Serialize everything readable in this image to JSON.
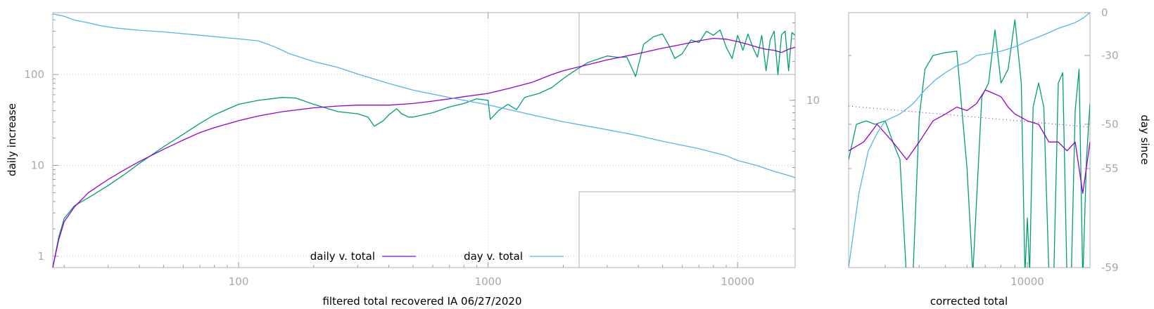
{
  "colors": {
    "daily": "#9400d3",
    "day": "#56b4e9",
    "raw": "#009e73",
    "frame": "#b0b0b0",
    "tick_text": "#a8a8a8"
  },
  "chart_data": [
    {
      "type": "line",
      "xscale": "log",
      "yscale": "log",
      "xlim": [
        18,
        17000
      ],
      "ylim": [
        0.75,
        480
      ],
      "y2lim": [
        0.5,
        48
      ],
      "grid": true,
      "legend_position": "bottom-center",
      "xlabel": "filtered total recovered IA 06/27/2020",
      "ylabel": "daily increase",
      "y2label": "",
      "x_ticks": [
        {
          "value": 100,
          "label": "100"
        },
        {
          "value": 1000,
          "label": "1000"
        },
        {
          "value": 10000,
          "label": "10000"
        }
      ],
      "y_ticks": [
        {
          "value": 1,
          "label": "1"
        },
        {
          "value": 10,
          "label": "10"
        },
        {
          "value": 100,
          "label": "100"
        }
      ],
      "y2_ticks": [
        {
          "value": 10,
          "label": "10"
        }
      ],
      "series": [
        {
          "name": "daily v. total",
          "color": "#9400d3",
          "axis": "y",
          "points": [
            [
              18,
              0.75
            ],
            [
              19,
              1.5
            ],
            [
              20,
              2.4
            ],
            [
              22,
              3.5
            ],
            [
              25,
              5.0
            ],
            [
              30,
              7.0
            ],
            [
              35,
              9.0
            ],
            [
              40,
              11
            ],
            [
              50,
              15
            ],
            [
              60,
              19
            ],
            [
              70,
              23
            ],
            [
              80,
              26
            ],
            [
              100,
              31
            ],
            [
              120,
              35
            ],
            [
              150,
              39
            ],
            [
              200,
              43
            ],
            [
              250,
              45
            ],
            [
              300,
              46
            ],
            [
              350,
              46
            ],
            [
              400,
              46
            ],
            [
              500,
              48
            ],
            [
              600,
              51
            ],
            [
              700,
              54
            ],
            [
              800,
              57
            ],
            [
              1000,
              62
            ],
            [
              1200,
              70
            ],
            [
              1500,
              82
            ],
            [
              1800,
              100
            ],
            [
              2000,
              110
            ],
            [
              2500,
              128
            ],
            [
              3000,
              145
            ],
            [
              4000,
              170
            ],
            [
              5000,
              195
            ],
            [
              6000,
              215
            ],
            [
              7000,
              235
            ],
            [
              8000,
              250
            ],
            [
              9000,
              245
            ],
            [
              10000,
              230
            ],
            [
              11000,
              215
            ],
            [
              12000,
              200
            ],
            [
              13000,
              190
            ],
            [
              14000,
              185
            ],
            [
              15000,
              175
            ],
            [
              16000,
              190
            ],
            [
              17000,
              200
            ]
          ]
        },
        {
          "name": "day v. total",
          "color": "#56b4e9",
          "axis": "y2",
          "points": [
            [
              18,
              47
            ],
            [
              20,
              45
            ],
            [
              22,
              42
            ],
            [
              25,
              40
            ],
            [
              28,
              38
            ],
            [
              32,
              36.5
            ],
            [
              40,
              35
            ],
            [
              50,
              34
            ],
            [
              70,
              32
            ],
            [
              100,
              30
            ],
            [
              120,
              29
            ],
            [
              140,
              26
            ],
            [
              160,
              23
            ],
            [
              200,
              20
            ],
            [
              250,
              18
            ],
            [
              300,
              16
            ],
            [
              400,
              13.5
            ],
            [
              500,
              12
            ],
            [
              700,
              10.5
            ],
            [
              1000,
              9.2
            ],
            [
              1500,
              7.7
            ],
            [
              2000,
              6.8
            ],
            [
              3000,
              5.9
            ],
            [
              4000,
              5.3
            ],
            [
              5000,
              4.8
            ],
            [
              7000,
              4.2
            ],
            [
              9000,
              3.7
            ],
            [
              10000,
              3.4
            ],
            [
              12000,
              3.1
            ],
            [
              14000,
              2.8
            ],
            [
              16000,
              2.6
            ],
            [
              17000,
              2.5
            ]
          ]
        },
        {
          "name": "",
          "color": "#009e73",
          "axis": "y",
          "points": [
            [
              18,
              0.75
            ],
            [
              19,
              1.6
            ],
            [
              20,
              2.6
            ],
            [
              22,
              3.6
            ],
            [
              25,
              4.4
            ],
            [
              30,
              6.0
            ],
            [
              35,
              8.0
            ],
            [
              40,
              10.5
            ],
            [
              50,
              16
            ],
            [
              60,
              22
            ],
            [
              70,
              29
            ],
            [
              80,
              36
            ],
            [
              100,
              47
            ],
            [
              120,
              52
            ],
            [
              150,
              56
            ],
            [
              170,
              55
            ],
            [
              200,
              47
            ],
            [
              250,
              39
            ],
            [
              300,
              37
            ],
            [
              330,
              34
            ],
            [
              350,
              27
            ],
            [
              380,
              31
            ],
            [
              400,
              36
            ],
            [
              430,
              42
            ],
            [
              450,
              37
            ],
            [
              480,
              34
            ],
            [
              500,
              34
            ],
            [
              600,
              38
            ],
            [
              700,
              44
            ],
            [
              800,
              48
            ],
            [
              900,
              54
            ],
            [
              1000,
              52
            ],
            [
              1020,
              32
            ],
            [
              1100,
              40
            ],
            [
              1200,
              47
            ],
            [
              1300,
              41
            ],
            [
              1400,
              56
            ],
            [
              1600,
              62
            ],
            [
              1800,
              72
            ],
            [
              2000,
              90
            ],
            [
              2200,
              108
            ],
            [
              2500,
              135
            ],
            [
              3000,
              160
            ],
            [
              3300,
              155
            ],
            [
              3600,
              155
            ],
            [
              3900,
              95
            ],
            [
              4200,
              215
            ],
            [
              4600,
              260
            ],
            [
              5000,
              280
            ],
            [
              5300,
              210
            ],
            [
              5600,
              150
            ],
            [
              6000,
              170
            ],
            [
              6500,
              240
            ],
            [
              7000,
              225
            ],
            [
              7500,
              300
            ],
            [
              8000,
              270
            ],
            [
              8500,
              310
            ],
            [
              9000,
              200
            ],
            [
              9500,
              150
            ],
            [
              10000,
              270
            ],
            [
              10500,
              185
            ],
            [
              11000,
              280
            ],
            [
              11500,
              200
            ],
            [
              12000,
              155
            ],
            [
              12500,
              270
            ],
            [
              13000,
              110
            ],
            [
              13500,
              240
            ],
            [
              14000,
              300
            ],
            [
              14500,
              100
            ],
            [
              15000,
              275
            ],
            [
              15500,
              300
            ],
            [
              16000,
              110
            ],
            [
              16500,
              290
            ],
            [
              17000,
              270
            ]
          ]
        }
      ]
    },
    {
      "type": "line",
      "xscale": "log",
      "xlim": [
        2200,
        17000
      ],
      "ylim": [
        -59,
        0
      ],
      "xlabel": "corrected total",
      "ylabel": "",
      "y2label": "day since",
      "x_ticks": [
        {
          "value": 10000,
          "label": "10000"
        }
      ],
      "y2_ticks": [
        {
          "value": 0,
          "label": "0"
        },
        {
          "value": -30,
          "label": "-30"
        },
        {
          "value": -50,
          "label": "-50"
        },
        {
          "value": -55,
          "label": "-55"
        },
        {
          "value": -59,
          "label": "-59"
        }
      ],
      "series": [
        {
          "name": "",
          "color": "#009e73",
          "points": [
            [
              2200,
              -54
            ],
            [
              2350,
              -50
            ],
            [
              2550,
              -49
            ],
            [
              2750,
              -50
            ],
            [
              3000,
              -49
            ],
            [
              3200,
              -52
            ],
            [
              3400,
              -54
            ],
            [
              3600,
              -72
            ],
            [
              3800,
              -62
            ],
            [
              4000,
              -48
            ],
            [
              4200,
              -34
            ],
            [
              4500,
              -30
            ],
            [
              5000,
              -28
            ],
            [
              5500,
              -27
            ],
            [
              6000,
              -55
            ],
            [
              6300,
              -64
            ],
            [
              6800,
              -42
            ],
            [
              7200,
              -38
            ],
            [
              7600,
              -12
            ],
            [
              8000,
              -38
            ],
            [
              8500,
              -34
            ],
            [
              9000,
              -5
            ],
            [
              9500,
              -38
            ],
            [
              9800,
              -64
            ],
            [
              10000,
              -57
            ],
            [
              10200,
              -63
            ],
            [
              10500,
              -45
            ],
            [
              11000,
              -38
            ],
            [
              11500,
              -45
            ],
            [
              12000,
              -62
            ],
            [
              12500,
              -75
            ],
            [
              13000,
              -38
            ],
            [
              13500,
              -35
            ],
            [
              14000,
              -68
            ],
            [
              14500,
              -80
            ],
            [
              15000,
              -46
            ],
            [
              15500,
              -34
            ],
            [
              16000,
              -72
            ],
            [
              16500,
              -54
            ],
            [
              17000,
              -44
            ]
          ]
        },
        {
          "name": "",
          "color": "#9400d3",
          "points": [
            [
              2200,
              -53
            ],
            [
              2500,
              -52
            ],
            [
              2800,
              -50
            ],
            [
              3200,
              -52
            ],
            [
              3600,
              -54
            ],
            [
              4000,
              -52
            ],
            [
              4500,
              -49
            ],
            [
              5000,
              -47
            ],
            [
              5500,
              -45
            ],
            [
              6000,
              -46
            ],
            [
              6500,
              -44
            ],
            [
              7000,
              -40
            ],
            [
              7500,
              -41
            ],
            [
              8000,
              -42
            ],
            [
              8500,
              -45
            ],
            [
              9000,
              -47
            ],
            [
              9500,
              -48
            ],
            [
              10000,
              -49
            ],
            [
              11000,
              -50
            ],
            [
              12000,
              -52
            ],
            [
              13000,
              -52
            ],
            [
              14000,
              -53
            ],
            [
              15000,
              -52
            ],
            [
              16000,
              -56
            ],
            [
              17000,
              -52
            ]
          ]
        },
        {
          "name": "",
          "color": "#56b4e9",
          "points": [
            [
              2200,
              -59
            ],
            [
              2400,
              -56
            ],
            [
              2600,
              -53
            ],
            [
              2800,
              -51
            ],
            [
              3000,
              -49
            ],
            [
              3400,
              -47
            ],
            [
              3800,
              -44
            ],
            [
              4200,
              -40
            ],
            [
              4600,
              -37
            ],
            [
              5000,
              -35
            ],
            [
              5500,
              -33
            ],
            [
              6000,
              -32
            ],
            [
              6500,
              -30
            ],
            [
              7000,
              -29
            ],
            [
              8000,
              -27
            ],
            [
              9000,
              -24
            ],
            [
              10000,
              -20
            ],
            [
              11000,
              -17
            ],
            [
              12000,
              -14
            ],
            [
              13000,
              -11
            ],
            [
              14000,
              -9
            ],
            [
              15000,
              -7
            ],
            [
              16000,
              -4
            ],
            [
              17000,
              0
            ]
          ]
        }
      ]
    }
  ]
}
